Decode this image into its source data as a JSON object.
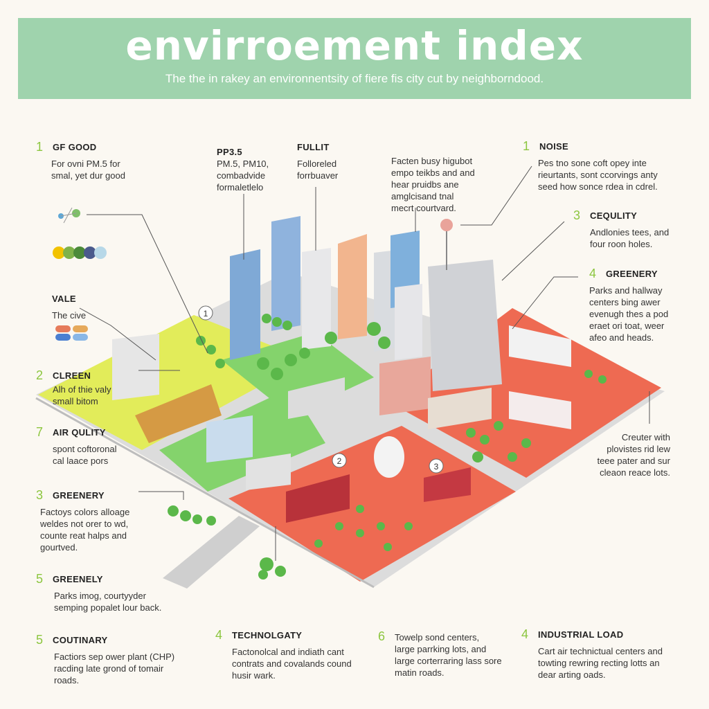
{
  "header": {
    "title": "envirroement index",
    "subtitle": "The the in rakey an environnentsity of fiere fis city cut by neighborndood."
  },
  "colors": {
    "header_bg": "#9fd3ad",
    "green_accent": "#8cc63f",
    "zone_yellow": "#e2ec5a",
    "zone_green": "#84d36c",
    "zone_red": "#ee6a52"
  },
  "annotations_left": [
    {
      "num": "1",
      "label": "GF GOOD",
      "lines": [
        "For ovni PM.5 for",
        "smal, yet dur good"
      ]
    },
    {
      "num": "",
      "label": "VALE",
      "lines": [
        "The cive"
      ]
    },
    {
      "num": "2",
      "label": "CLREEN",
      "lines": [
        "Alh of thie valy",
        "small bitom"
      ]
    },
    {
      "num": "7",
      "label": "AIR QULITY",
      "lines": [
        "spont coftoronal",
        "cal laace pors"
      ]
    },
    {
      "num": "3",
      "label": "GREENERY",
      "lines": [
        "Factoys colors alloage",
        "weldes not orer to wd,",
        "counte reat halps and",
        "gourtved."
      ]
    },
    {
      "num": "5",
      "label": "GREENELY",
      "lines": [
        "Parks imog, courtyyder",
        "semping popalet lour back."
      ]
    },
    {
      "num": "5",
      "label": "COUTINARY",
      "lines": [
        "Factiors sep ower plant (CHP)",
        "racding late grond of tomair",
        "roads."
      ]
    }
  ],
  "annotations_top": [
    {
      "label": "PP3.5",
      "lines": [
        "PM.5, PM10,",
        "combadvide",
        "formaletlelo"
      ]
    },
    {
      "label": "FULLIT",
      "lines": [
        "Folloreled",
        "forrbuaver"
      ]
    },
    {
      "label": "",
      "lines": [
        "Facten busy higubot",
        "empo teikbs and and",
        "hear pruidbs ane",
        "amglcisand tnal",
        "mecrt courtvard."
      ]
    }
  ],
  "annotations_right": [
    {
      "num": "1",
      "label": "NOISE",
      "lines": [
        "Pes tno sone coft opey inte",
        "rieurtants, sont ccorvings anty",
        "seed how sonce rdea in cdrel."
      ]
    },
    {
      "num": "3",
      "label": "CEQULITY",
      "lines": [
        "Andlonies tees, and",
        "four roon holes."
      ]
    },
    {
      "num": "4",
      "label": "GREENERY",
      "lines": [
        "Parks and hallway",
        "centers bing awer",
        "evenugh thes a pod",
        "eraet ori toat, weer",
        "afeo and heads."
      ]
    },
    {
      "num": "",
      "label": "",
      "lines": [
        "Creuter with",
        "plovistes rid lew",
        "teee pater and sur",
        "cleaon reace lots."
      ]
    }
  ],
  "annotations_bottom": [
    {
      "num": "4",
      "label": "TECHNOLGATY",
      "lines": [
        "Factonolcal and indiath cant",
        "contrats and covalands cound",
        "husir wark."
      ]
    },
    {
      "num": "6",
      "label": "",
      "lines": [
        "Towelp sond centers,",
        "large parrking lots, and",
        "large corterraring lass sore",
        "matin roads."
      ]
    },
    {
      "num": "4",
      "label": "INDUSTRIAL LOAD",
      "lines": [
        "Cart air technictual centers and",
        "towting rewring recting lotts an",
        "dear arting oads."
      ]
    }
  ],
  "map_markers": [
    "1",
    "2",
    "3"
  ]
}
